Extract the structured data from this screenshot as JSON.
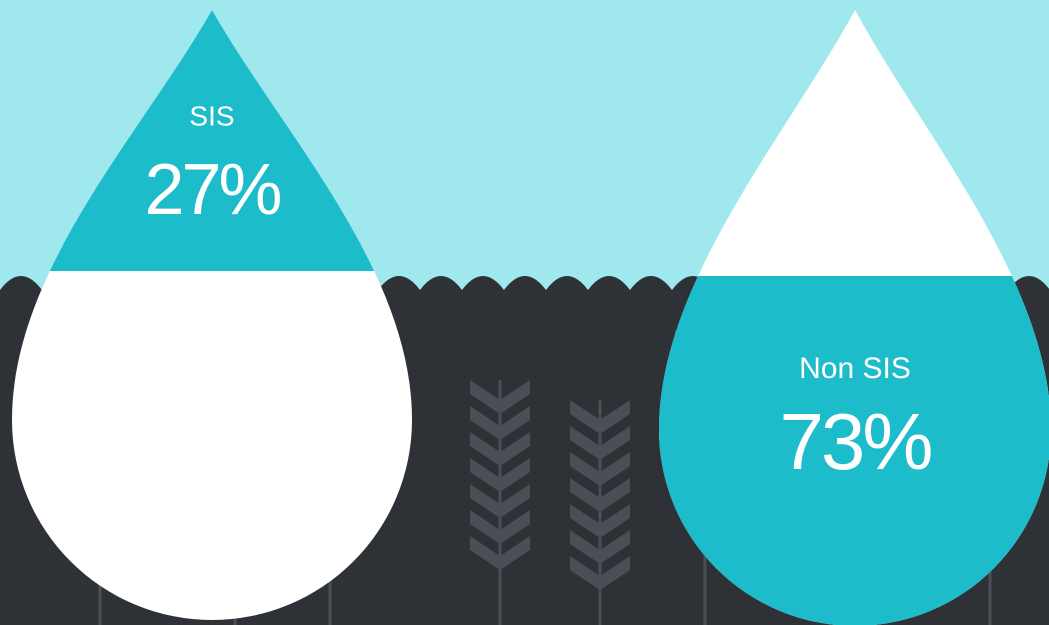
{
  "chart_data": {
    "type": "drop",
    "categories": [
      "SIS",
      "Non SIS"
    ],
    "values": [
      27,
      73
    ],
    "value_labels": [
      "27%",
      "73%"
    ],
    "color": "#1dbccb"
  }
}
